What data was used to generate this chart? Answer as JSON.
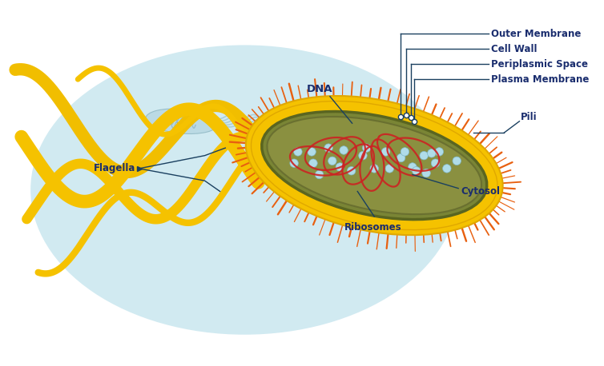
{
  "bg_color": "#ffffff",
  "light_blue_bg": "#cce8f0",
  "spikes_color": "#e86010",
  "yellow_ring_color": "#f5c200",
  "yellow_ring_edge": "#e0a800",
  "cell_interior_color": "#8a9040",
  "cell_edge_color": "#6a7030",
  "cytosol_color": "#9aa048",
  "dna_color": "#cc2222",
  "ribosome_color": "#b0dce8",
  "ribosome_edge": "#80b8c8",
  "flagella_color": "#f5c200",
  "flagella_edge": "#e0a800",
  "ghost_body_color": "#b8d8e2",
  "ghost_flagella_color": "#90bcc8",
  "ghost_dna_color": "#80a8b8",
  "label_color": "#1a2d6e",
  "ann_line_color": "#1a4060",
  "labels": {
    "outer_membrane": "Outer Membrane",
    "cell_wall": "Cell Wall",
    "periplasmic_space": "Periplasmic Space",
    "plasma_membrane": "Plasma Membrane",
    "dna": "DNA",
    "pili": "Pili",
    "cytosol": "Cytosol",
    "ribosomes": "Ribosomes",
    "flagella": "Flagella"
  }
}
